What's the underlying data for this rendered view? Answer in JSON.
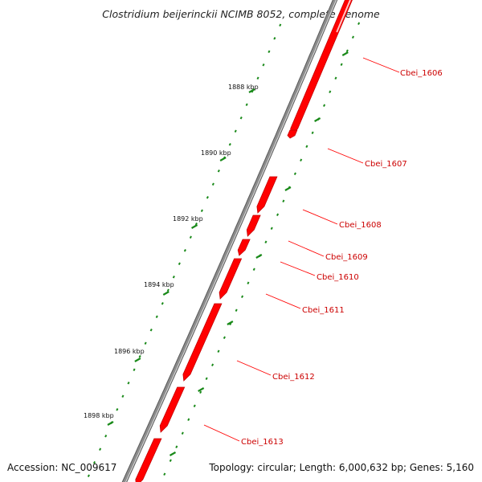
{
  "title": "Clostridium beijerinckii NCIMB 8052, complete genome",
  "accession": "Accession: NC_009617",
  "summary": "Topology: circular; Length: 6,000,632 bp; Genes: 5,160",
  "colors": {
    "gene": "#ff0000",
    "gene_label": "#cc0000",
    "backbone": "#8c8c8c",
    "tick": "#1a8a1a",
    "text": "#222222"
  },
  "ticks": [
    "1888 kbp",
    "1890 kbp",
    "1892 kbp",
    "1894 kbp",
    "1896 kbp",
    "1898 kbp"
  ],
  "genes": [
    "Cbei_1606",
    "Cbei_1607",
    "Cbei_1608",
    "Cbei_1609",
    "Cbei_1610",
    "Cbei_1611",
    "Cbei_1612",
    "Cbei_1613"
  ]
}
